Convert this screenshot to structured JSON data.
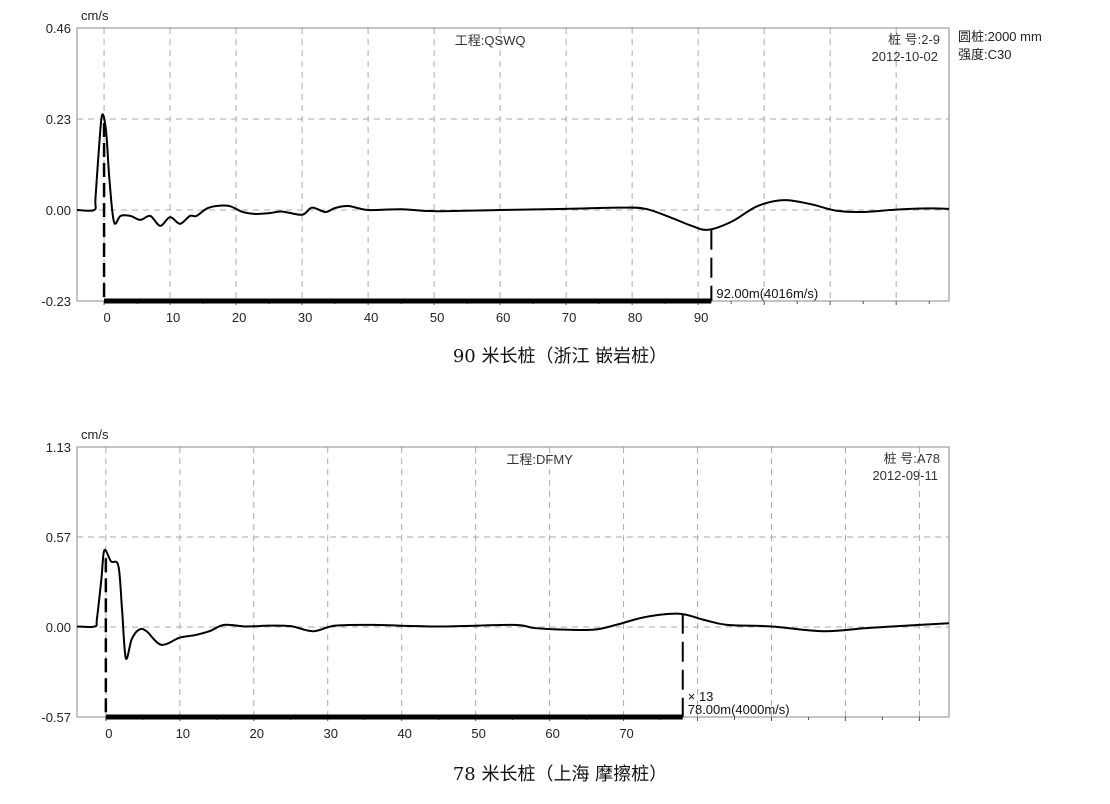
{
  "chart_data": [
    {
      "type": "line",
      "unit": "cm/s",
      "project": "工程:QSWQ",
      "pile_no": "桩 号:2-9",
      "date": "2012-10-02",
      "side_info": [
        "圆桩:2000 mm",
        "强度:C30"
      ],
      "yticks": [
        "0.46",
        "0.23",
        "0.00",
        "-0.23"
      ],
      "ylim": [
        -0.23,
        0.46
      ],
      "xlim": [
        -4.1,
        128
      ],
      "xticks": [
        0,
        10,
        20,
        30,
        40,
        50,
        60,
        70,
        80,
        90
      ],
      "xgrid": [
        0,
        10,
        20,
        30,
        40,
        50,
        60,
        70,
        80,
        90,
        100,
        110,
        120
      ],
      "grid": true,
      "marker": {
        "x": 92,
        "label": "92.00m(4016m/s)"
      },
      "gain": "",
      "caption": "90 米长桩（浙江  嵌岩桩）",
      "x": [
        -4.1,
        -1.5,
        -1.3,
        -0.8,
        -0.3,
        0.3,
        0.8,
        1.5,
        2.5,
        4,
        5.5,
        7,
        8.5,
        10,
        11.5,
        13,
        14,
        15.5,
        17,
        19,
        21,
        23,
        25,
        27,
        30,
        31.5,
        33.5,
        35,
        37,
        40,
        45,
        50,
        60,
        70,
        78,
        82,
        86,
        89,
        91.5,
        95,
        99,
        103,
        107,
        111,
        115,
        120,
        125,
        128
      ],
      "y": [
        0,
        0,
        0.03,
        0.15,
        0.24,
        0.2,
        0.08,
        -0.03,
        -0.015,
        -0.015,
        -0.025,
        -0.015,
        -0.04,
        -0.018,
        -0.035,
        -0.015,
        -0.015,
        0.003,
        0.01,
        0.01,
        -0.005,
        -0.01,
        -0.008,
        -0.004,
        -0.012,
        0.006,
        -0.005,
        0.005,
        0.01,
        0,
        0.002,
        -0.003,
        0,
        0.003,
        0.006,
        0.003,
        -0.02,
        -0.04,
        -0.05,
        -0.03,
        0.01,
        0.025,
        0.015,
        -0.002,
        -0.005,
        0.001,
        0.004,
        0.003
      ]
    },
    {
      "type": "line",
      "unit": "cm/s",
      "project": "工程:DFMY",
      "pile_no": "桩 号:A78",
      "date": "2012-09-11",
      "side_info": [],
      "yticks": [
        "1.13",
        "0.57",
        "0.00",
        "-0.57"
      ],
      "ylim": [
        -0.57,
        1.13
      ],
      "xlim": [
        -3.9,
        114
      ],
      "xticks": [
        0,
        10,
        20,
        30,
        40,
        50,
        60,
        70
      ],
      "xgrid": [
        0,
        10,
        20,
        30,
        40,
        50,
        60,
        70,
        80,
        90,
        100,
        110
      ],
      "grid": true,
      "marker": {
        "x": 78,
        "label": "78.00m(4000m/s)"
      },
      "gain": "× 13",
      "caption": "78 米长桩（上海  摩擦桩）",
      "x": [
        -3.9,
        -1.5,
        -1.2,
        -0.6,
        -0.2,
        0.7,
        1.7,
        2.2,
        2.7,
        3.5,
        4.5,
        5.5,
        7.5,
        10,
        12,
        14,
        16,
        19,
        22,
        25,
        28,
        31,
        36,
        45,
        55,
        58,
        62,
        66,
        69,
        73,
        77.5,
        81,
        84,
        90,
        97,
        103,
        110,
        114
      ],
      "y": [
        0,
        0,
        0.05,
        0.3,
        0.48,
        0.41,
        0.38,
        0.1,
        -0.2,
        -0.08,
        -0.02,
        -0.03,
        -0.115,
        -0.07,
        -0.055,
        -0.03,
        0.01,
        0,
        0.005,
        0.002,
        -0.03,
        0.005,
        0.01,
        0,
        0.01,
        -0.01,
        -0.02,
        -0.02,
        0.01,
        0.06,
        0.08,
        0.04,
        0.01,
        0,
        -0.03,
        -0.01,
        0.01,
        0.02
      ]
    }
  ]
}
